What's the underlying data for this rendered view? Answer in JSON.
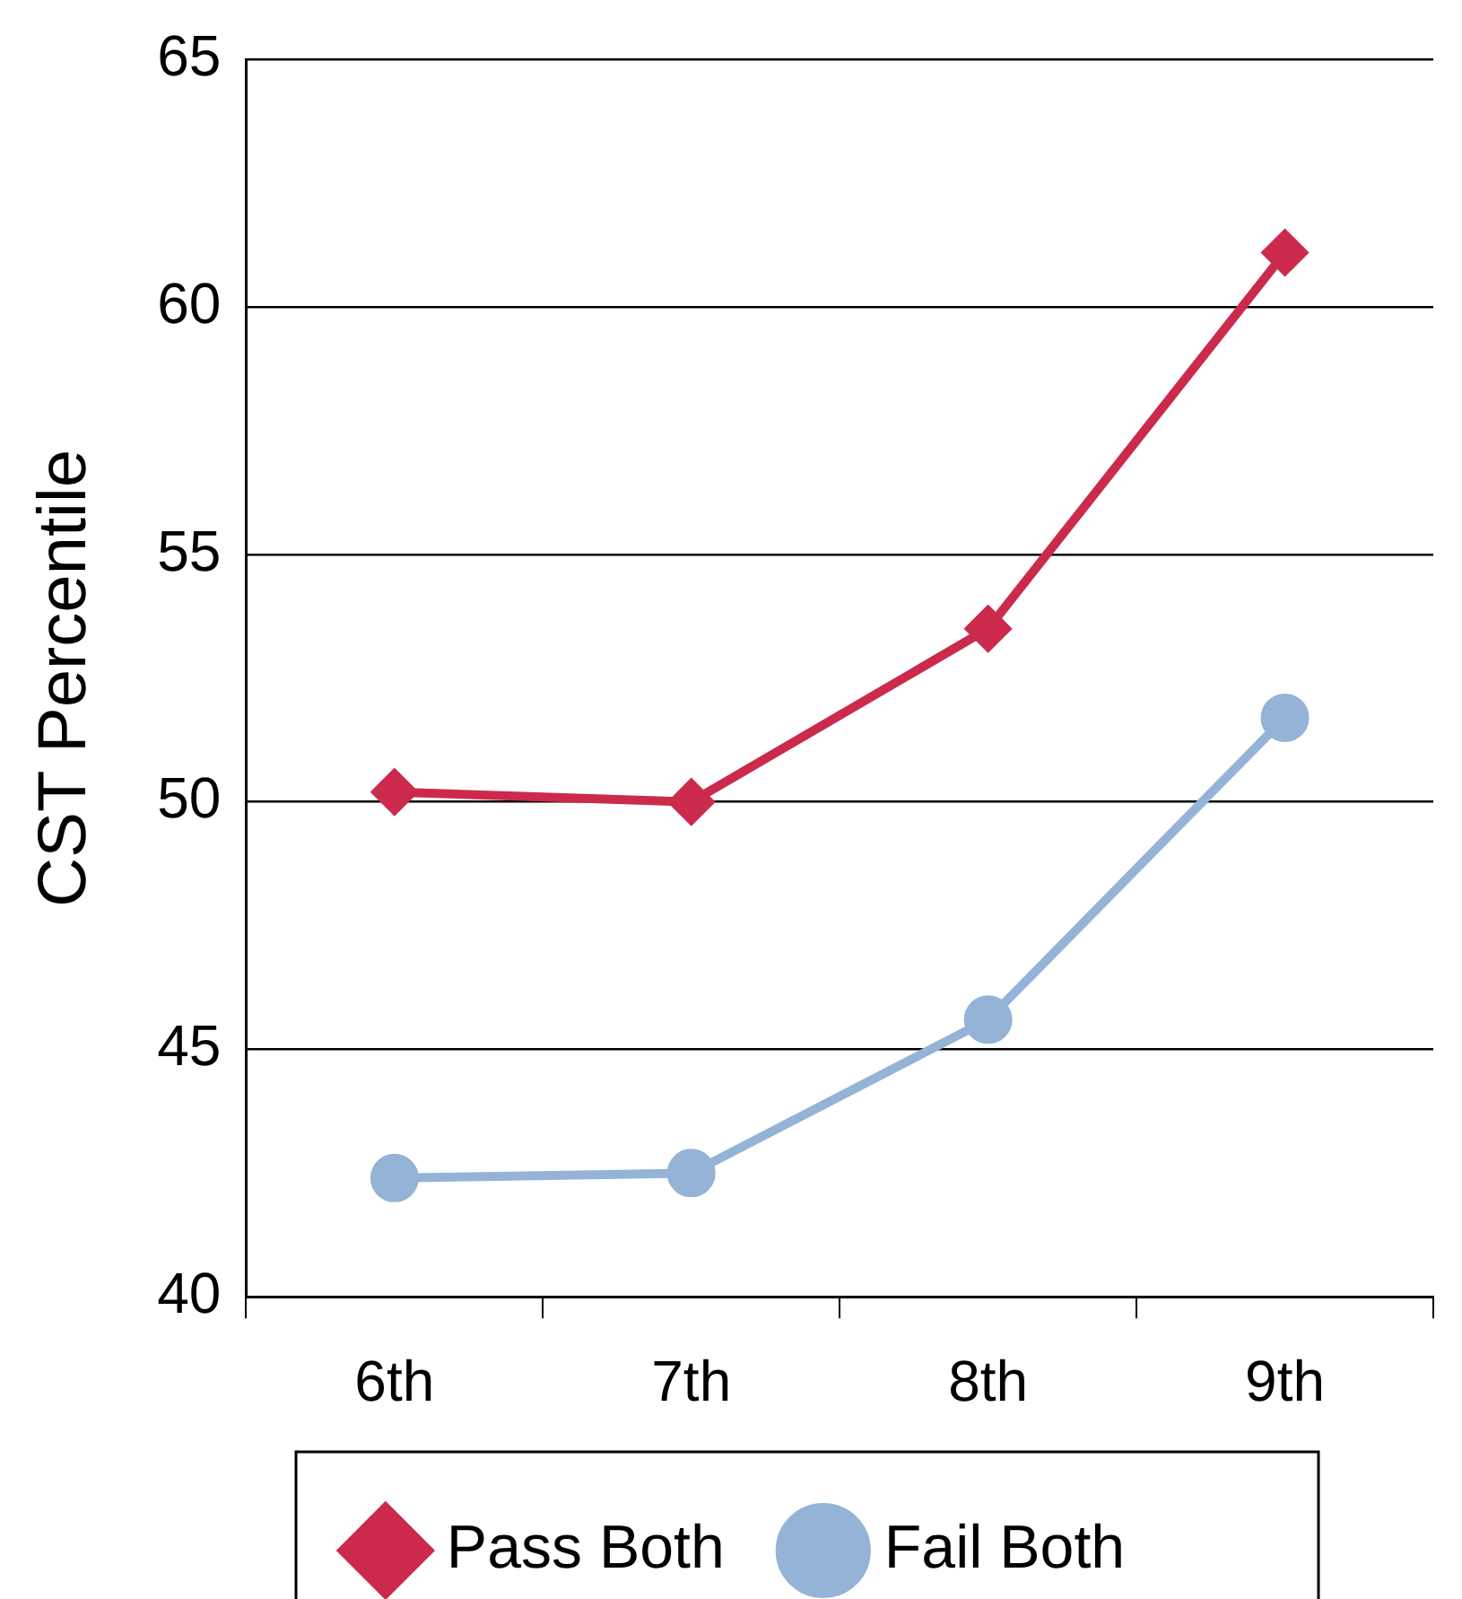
{
  "chart_data": {
    "type": "line",
    "ylabel": "CST Percentile",
    "categories": [
      "6th",
      "7th",
      "8th",
      "9th"
    ],
    "ylim": [
      40,
      65
    ],
    "yticks": [
      40,
      45,
      50,
      55,
      60,
      65
    ],
    "grid": "y",
    "legend": "bottom",
    "line_style": "solid",
    "series": [
      {
        "name": "Pass Both",
        "color": "#cc2a4c",
        "marker": "diamond",
        "values": [
          50.2,
          50.0,
          53.5,
          61.1
        ]
      },
      {
        "name": "Fail Both",
        "color": "#95b3d7",
        "marker": "circle",
        "values": [
          42.4,
          42.5,
          45.6,
          51.7
        ]
      }
    ]
  }
}
